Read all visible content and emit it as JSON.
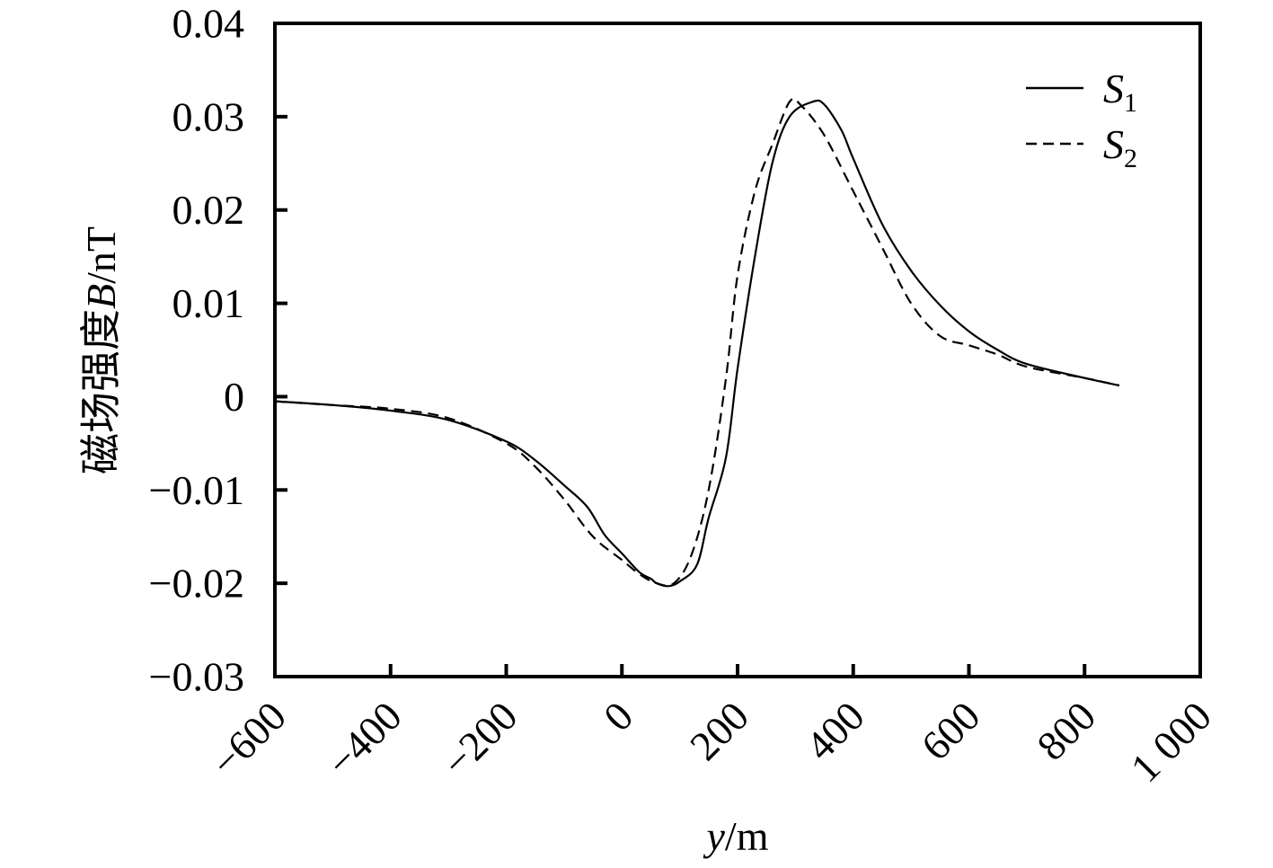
{
  "chart_data": {
    "type": "line",
    "ylabel": "磁场强度B/nT",
    "xlabel": "y/m",
    "xlim": [
      -600,
      1000
    ],
    "ylim": [
      -0.03,
      0.04
    ],
    "x_ticks": [
      -600,
      -400,
      -200,
      0,
      200,
      400,
      600,
      800,
      1000
    ],
    "x_tick_labels": [
      "−600",
      "−400",
      "−200",
      "0",
      "200",
      "400",
      "600",
      "800",
      "1 000"
    ],
    "y_ticks": [
      0.04,
      0.03,
      0.02,
      0.01,
      0,
      -0.01,
      -0.02,
      -0.03
    ],
    "y_tick_labels": [
      "0.04",
      "0.03",
      "0.02",
      "0.01",
      "0",
      "−0.01",
      "−0.02",
      "−0.03"
    ],
    "grid": false,
    "legend_position": "top-right",
    "series": [
      {
        "name": "S1",
        "style": "solid",
        "color": "#000000",
        "points": [
          [
            -600,
            -0.0005
          ],
          [
            -500,
            -0.0009
          ],
          [
            -400,
            -0.0015
          ],
          [
            -300,
            -0.0025
          ],
          [
            -200,
            -0.0048
          ],
          [
            -150,
            -0.0068
          ],
          [
            -100,
            -0.0095
          ],
          [
            -60,
            -0.0118
          ],
          [
            -30,
            -0.0148
          ],
          [
            0,
            -0.0168
          ],
          [
            30,
            -0.0188
          ],
          [
            50,
            -0.0195
          ],
          [
            60,
            -0.02
          ],
          [
            80,
            -0.0203
          ],
          [
            100,
            -0.0198
          ],
          [
            130,
            -0.018
          ],
          [
            150,
            -0.013
          ],
          [
            180,
            -0.0065
          ],
          [
            200,
            0.003
          ],
          [
            230,
            0.015
          ],
          [
            260,
            0.025
          ],
          [
            290,
            0.03
          ],
          [
            330,
            0.0316
          ],
          [
            350,
            0.0313
          ],
          [
            380,
            0.0285
          ],
          [
            400,
            0.0255
          ],
          [
            450,
            0.0185
          ],
          [
            500,
            0.0135
          ],
          [
            550,
            0.0098
          ],
          [
            600,
            0.007
          ],
          [
            650,
            0.005
          ],
          [
            700,
            0.0035
          ],
          [
            800,
            0.002
          ],
          [
            860,
            0.0012
          ]
        ]
      },
      {
        "name": "S2",
        "style": "dashed",
        "color": "#000000",
        "points": [
          [
            -600,
            -0.0005
          ],
          [
            -500,
            -0.0009
          ],
          [
            -400,
            -0.0013
          ],
          [
            -300,
            -0.0023
          ],
          [
            -200,
            -0.005
          ],
          [
            -150,
            -0.0075
          ],
          [
            -100,
            -0.011
          ],
          [
            -50,
            -0.015
          ],
          [
            0,
            -0.0175
          ],
          [
            30,
            -0.019
          ],
          [
            60,
            -0.02
          ],
          [
            90,
            -0.02
          ],
          [
            120,
            -0.017
          ],
          [
            150,
            -0.01
          ],
          [
            180,
            0.002
          ],
          [
            200,
            0.013
          ],
          [
            230,
            0.022
          ],
          [
            260,
            0.027
          ],
          [
            290,
            0.0316
          ],
          [
            310,
            0.0312
          ],
          [
            350,
            0.028
          ],
          [
            400,
            0.022
          ],
          [
            450,
            0.016
          ],
          [
            500,
            0.01
          ],
          [
            550,
            0.0065
          ],
          [
            600,
            0.0055
          ],
          [
            650,
            0.0045
          ],
          [
            700,
            0.0032
          ],
          [
            800,
            0.002
          ],
          [
            860,
            0.0012
          ]
        ]
      }
    ]
  }
}
